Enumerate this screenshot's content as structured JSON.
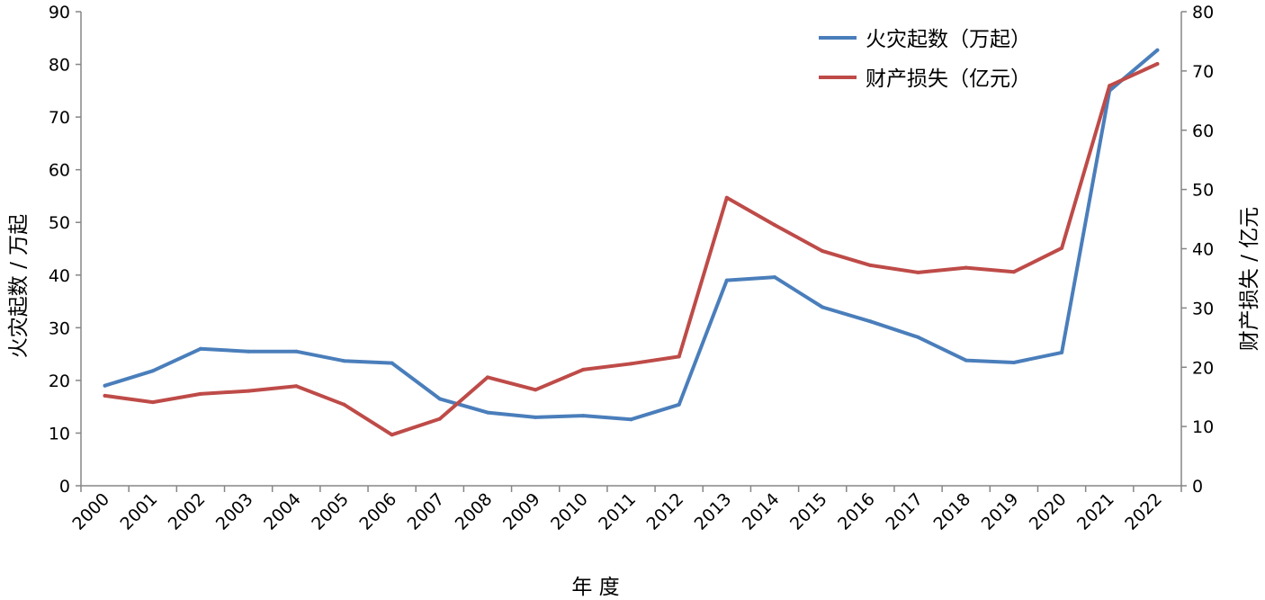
{
  "chart_data": {
    "type": "line",
    "categories": [
      "2000",
      "2001",
      "2002",
      "2003",
      "2004",
      "2005",
      "2006",
      "2007",
      "2008",
      "2009",
      "2010",
      "2011",
      "2012",
      "2013",
      "2014",
      "2015",
      "2016",
      "2017",
      "2018",
      "2019",
      "2020",
      "2021",
      "2022"
    ],
    "series": [
      {
        "name": "火灾起数（万起）",
        "axis": "left",
        "color": "#4a7ebb",
        "values": [
          19.0,
          21.8,
          26.0,
          25.5,
          25.5,
          23.7,
          23.3,
          16.5,
          13.9,
          13.0,
          13.3,
          12.6,
          15.4,
          39.0,
          39.6,
          33.9,
          31.2,
          28.2,
          23.8,
          23.4,
          25.3,
          75.0,
          82.7
        ]
      },
      {
        "name": "财产损失（亿元）",
        "axis": "right",
        "color": "#be4b48",
        "values": [
          15.2,
          14.1,
          15.5,
          16.0,
          16.8,
          13.7,
          8.6,
          11.3,
          18.3,
          16.2,
          19.6,
          20.6,
          21.8,
          48.6,
          44.0,
          39.6,
          37.2,
          36.0,
          36.8,
          36.1,
          40.1,
          67.5,
          71.2
        ]
      }
    ],
    "xlabel": "年 度",
    "ylabel_left": "火灾起数 / 万起",
    "ylabel_right": "财产损失 / 亿元",
    "ylim_left": [
      0,
      90
    ],
    "ylim_right": [
      0,
      80
    ],
    "yticks_left": [
      0,
      10,
      20,
      30,
      40,
      50,
      60,
      70,
      80,
      90
    ],
    "yticks_right": [
      0,
      10,
      20,
      30,
      40,
      50,
      60,
      70,
      80
    ],
    "legend_position": "top-right"
  }
}
